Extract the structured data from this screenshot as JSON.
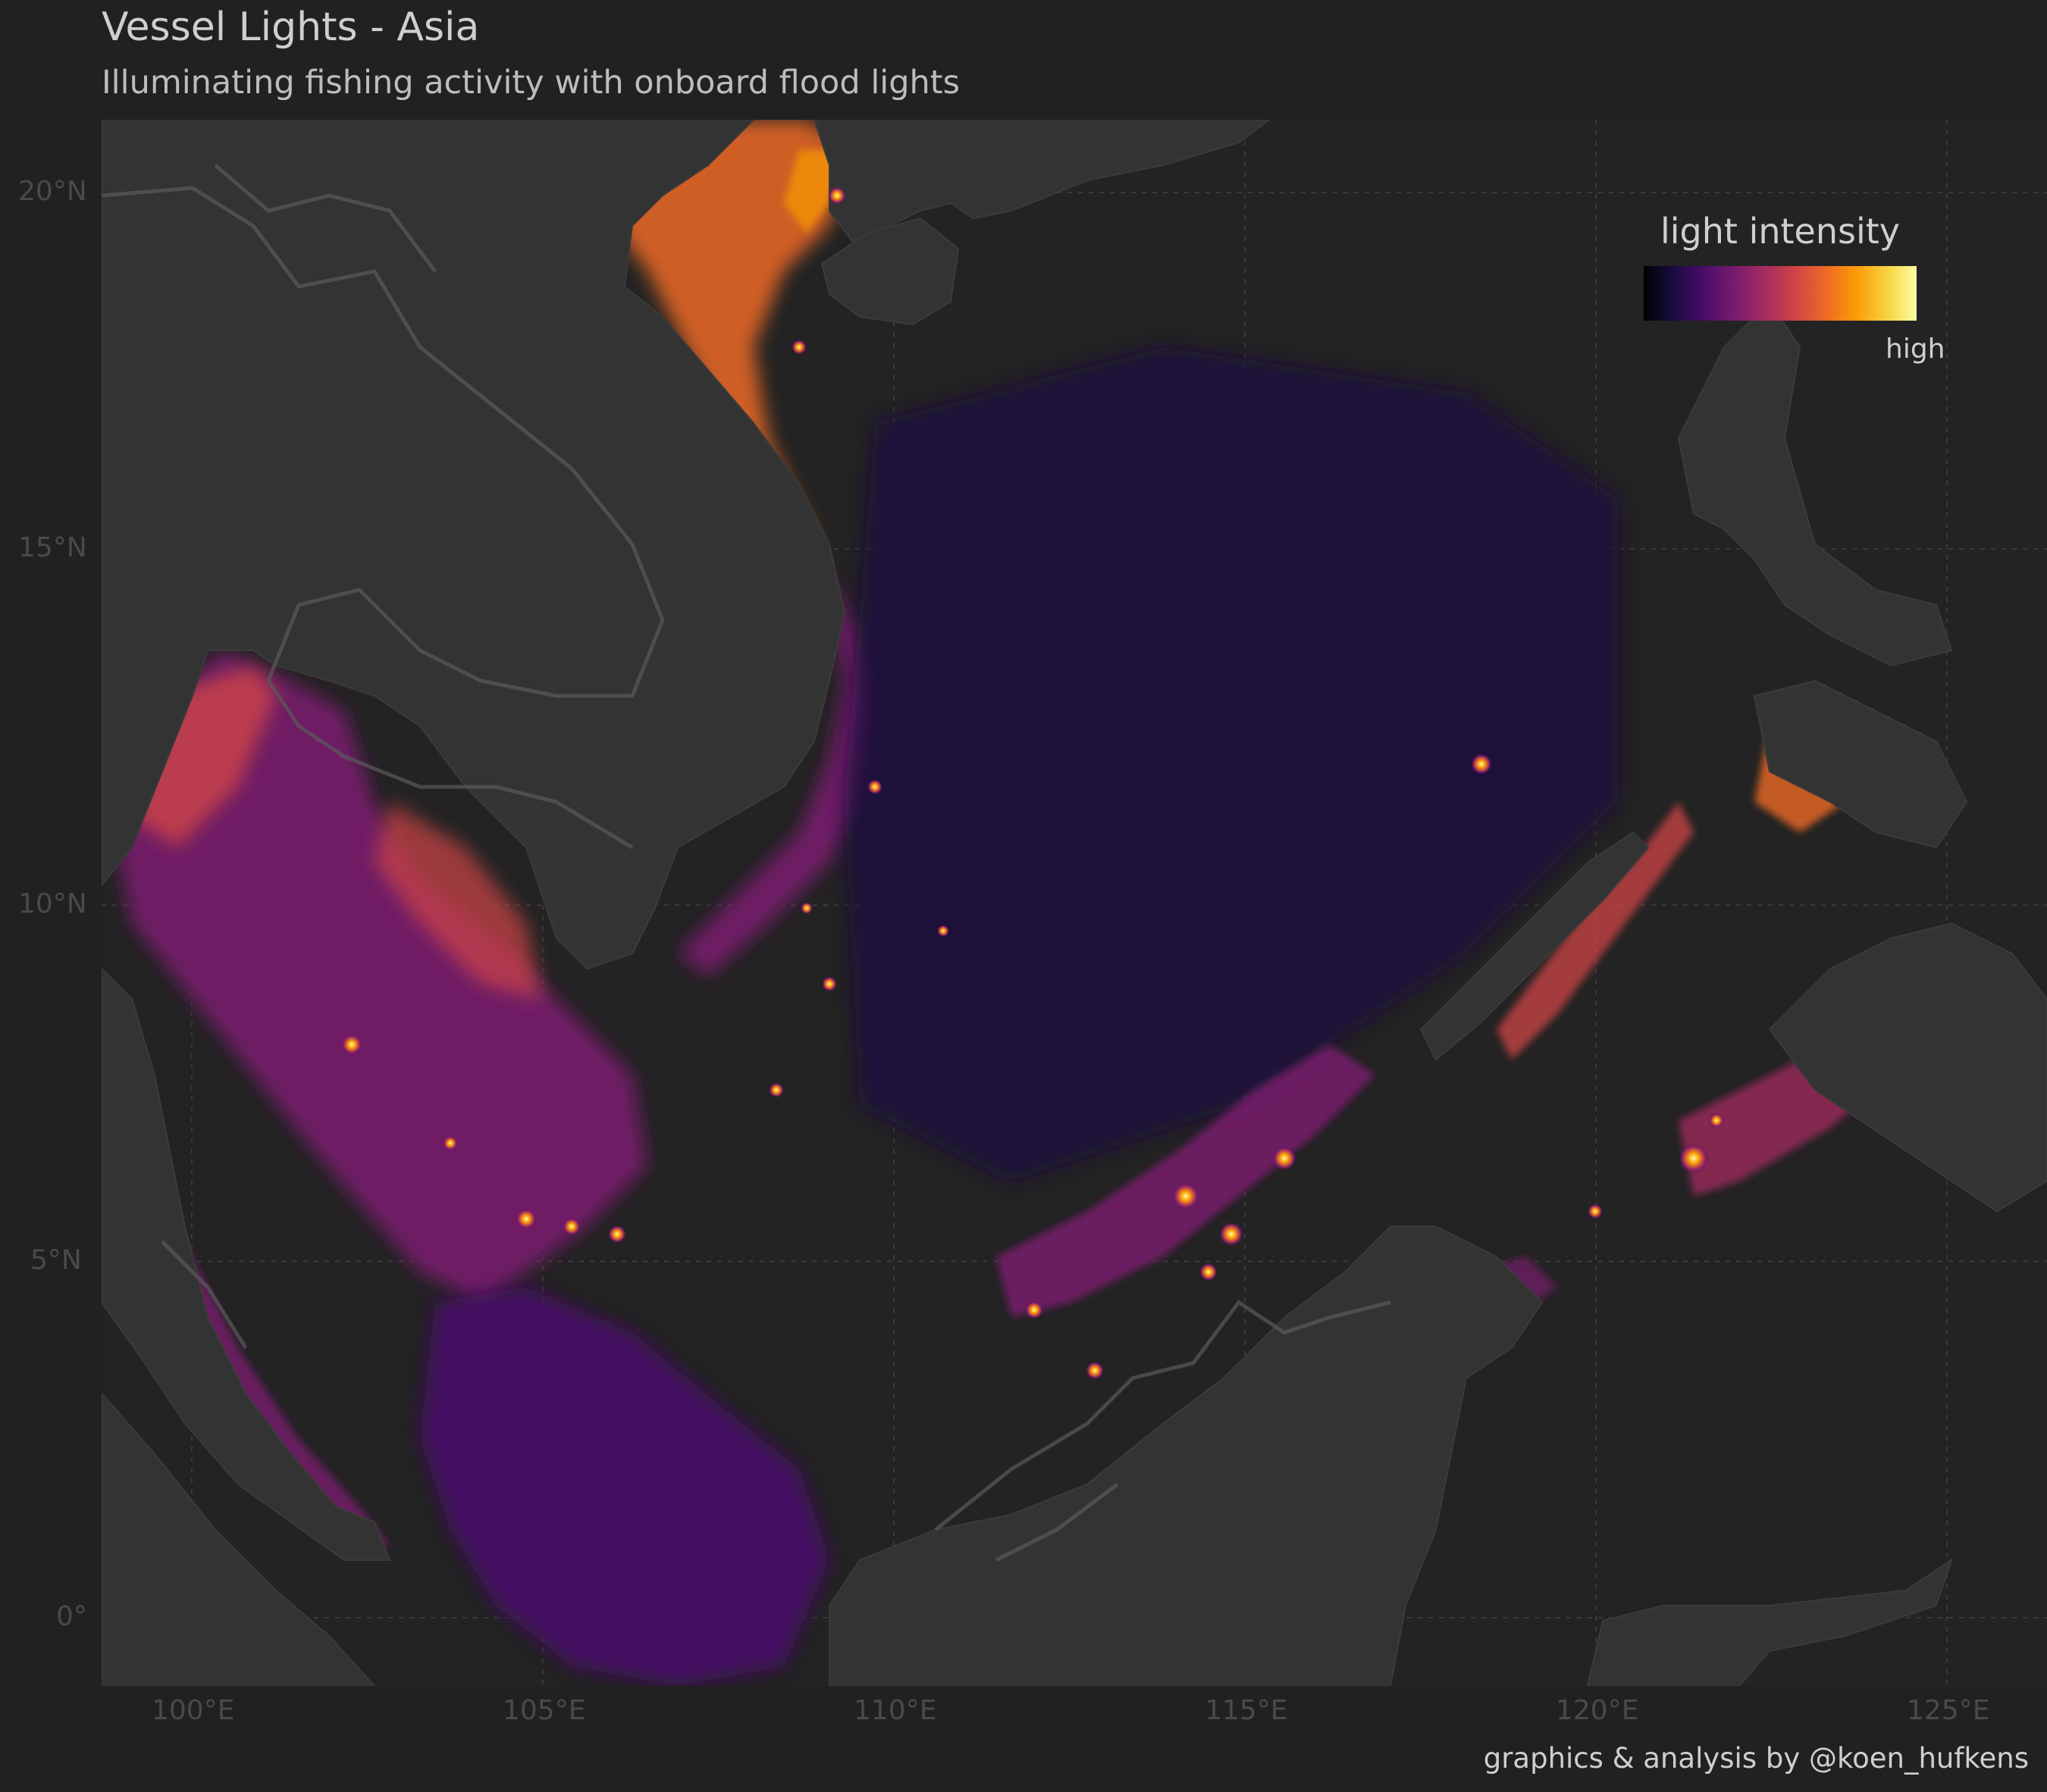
{
  "title": "Vessel Lights - Asia",
  "subtitle": "Illuminating fishing activity with onboard flood lights",
  "legend": {
    "title": "light intensity",
    "high_label": "high",
    "palette": [
      "#000004",
      "#1b0c41",
      "#4a0c6b",
      "#781c6d",
      "#a52c60",
      "#cf4446",
      "#ed6925",
      "#fb9b06",
      "#f7d13d",
      "#fcffa4"
    ]
  },
  "axes": {
    "x_ticks": [
      "100°E",
      "105°E",
      "110°E",
      "115°E",
      "120°E",
      "125°E"
    ],
    "y_ticks": [
      "20°N",
      "15°N",
      "10°N",
      "5°N",
      "0°"
    ]
  },
  "caption": "graphics & analysis by @koen_hufkens",
  "colors": {
    "background": "#212121",
    "land": "#333333",
    "ocean": "#232323",
    "borders": "#5a5a5a"
  }
}
